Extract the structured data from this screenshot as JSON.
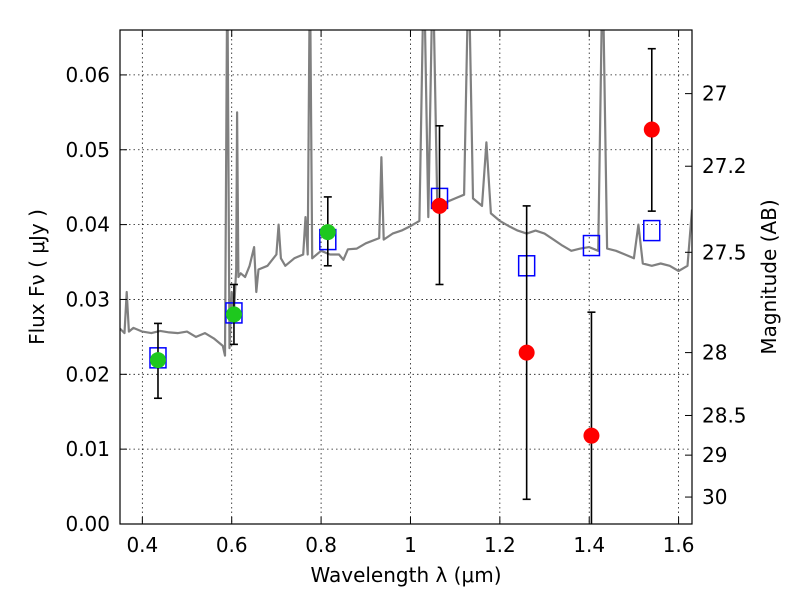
{
  "chart_data": {
    "type": "scatter",
    "xlabel": "Wavelength  λ (μm)",
    "ylabel": "Flux  Fν  ( μJy )",
    "ylabel_right": "Magnitude (AB)",
    "xlim": [
      0.35,
      1.63
    ],
    "ylim": [
      0.0,
      0.066
    ],
    "grid": true,
    "x_ticks": [
      0.4,
      0.6,
      0.8,
      1.0,
      1.2,
      1.4,
      1.6
    ],
    "x_tick_labels": [
      "0.4",
      "0.6",
      "0.8",
      "1",
      "1.2",
      "1.4",
      "1.6"
    ],
    "y_ticks": [
      0.0,
      0.01,
      0.02,
      0.03,
      0.04,
      0.05,
      0.06
    ],
    "y_tick_labels": [
      "0.00",
      "0.01",
      "0.02",
      "0.03",
      "0.04",
      "0.05",
      "0.06"
    ],
    "right_ticks": [
      {
        "label": "27",
        "flux": 0.0575
      },
      {
        "label": "27.2",
        "flux": 0.0478
      },
      {
        "label": "27.5",
        "flux": 0.0363
      },
      {
        "label": "28",
        "flux": 0.0229
      },
      {
        "label": "28.5",
        "flux": 0.0145
      },
      {
        "label": "29",
        "flux": 0.0092
      },
      {
        "label": "30",
        "flux": 0.0036
      }
    ],
    "model_spectrum": {
      "color": "#808080",
      "points": [
        [
          0.35,
          0.0261
        ],
        [
          0.36,
          0.0255
        ],
        [
          0.365,
          0.031
        ],
        [
          0.37,
          0.0257
        ],
        [
          0.38,
          0.0262
        ],
        [
          0.4,
          0.0257
        ],
        [
          0.42,
          0.0255
        ],
        [
          0.44,
          0.0258
        ],
        [
          0.46,
          0.0256
        ],
        [
          0.48,
          0.0255
        ],
        [
          0.5,
          0.0257
        ],
        [
          0.52,
          0.025
        ],
        [
          0.54,
          0.0255
        ],
        [
          0.56,
          0.0248
        ],
        [
          0.58,
          0.0238
        ],
        [
          0.585,
          0.0225
        ],
        [
          0.59,
          0.075
        ],
        [
          0.595,
          0.0235
        ],
        [
          0.6,
          0.031
        ],
        [
          0.605,
          0.0285
        ],
        [
          0.61,
          0.034
        ],
        [
          0.612,
          0.055
        ],
        [
          0.615,
          0.033
        ],
        [
          0.62,
          0.0335
        ],
        [
          0.63,
          0.033
        ],
        [
          0.64,
          0.0345
        ],
        [
          0.65,
          0.037
        ],
        [
          0.655,
          0.031
        ],
        [
          0.66,
          0.034
        ],
        [
          0.68,
          0.0345
        ],
        [
          0.7,
          0.036
        ],
        [
          0.705,
          0.04
        ],
        [
          0.71,
          0.0355
        ],
        [
          0.72,
          0.0345
        ],
        [
          0.74,
          0.0355
        ],
        [
          0.76,
          0.036
        ],
        [
          0.765,
          0.041
        ],
        [
          0.77,
          0.036
        ],
        [
          0.775,
          0.075
        ],
        [
          0.78,
          0.0355
        ],
        [
          0.8,
          0.0365
        ],
        [
          0.82,
          0.036
        ],
        [
          0.84,
          0.036
        ],
        [
          0.85,
          0.0353
        ],
        [
          0.86,
          0.0367
        ],
        [
          0.88,
          0.0368
        ],
        [
          0.9,
          0.0375
        ],
        [
          0.93,
          0.0382
        ],
        [
          0.935,
          0.049
        ],
        [
          0.94,
          0.038
        ],
        [
          0.96,
          0.0388
        ],
        [
          0.98,
          0.0392
        ],
        [
          1.0,
          0.0398
        ],
        [
          1.02,
          0.0405
        ],
        [
          1.03,
          0.075
        ],
        [
          1.04,
          0.041
        ],
        [
          1.05,
          0.075
        ],
        [
          1.06,
          0.0425
        ],
        [
          1.08,
          0.043
        ],
        [
          1.1,
          0.0435
        ],
        [
          1.12,
          0.044
        ],
        [
          1.13,
          0.075
        ],
        [
          1.14,
          0.0435
        ],
        [
          1.16,
          0.0425
        ],
        [
          1.17,
          0.051
        ],
        [
          1.18,
          0.0415
        ],
        [
          1.2,
          0.0405
        ],
        [
          1.22,
          0.0398
        ],
        [
          1.24,
          0.0392
        ],
        [
          1.26,
          0.0388
        ],
        [
          1.28,
          0.0392
        ],
        [
          1.3,
          0.0388
        ],
        [
          1.32,
          0.038
        ],
        [
          1.34,
          0.0372
        ],
        [
          1.36,
          0.0365
        ],
        [
          1.38,
          0.0368
        ],
        [
          1.4,
          0.037
        ],
        [
          1.42,
          0.0365
        ],
        [
          1.43,
          0.075
        ],
        [
          1.44,
          0.0368
        ],
        [
          1.46,
          0.0365
        ],
        [
          1.48,
          0.036
        ],
        [
          1.5,
          0.0355
        ],
        [
          1.51,
          0.04
        ],
        [
          1.52,
          0.0348
        ],
        [
          1.54,
          0.0345
        ],
        [
          1.56,
          0.0348
        ],
        [
          1.58,
          0.0345
        ],
        [
          1.6,
          0.0338
        ],
        [
          1.62,
          0.0345
        ],
        [
          1.63,
          0.042
        ]
      ]
    },
    "series": [
      {
        "marker": "open-square",
        "color": "#0000ff",
        "points": [
          [
            0.435,
            0.0222
          ],
          [
            0.605,
            0.0282
          ],
          [
            0.815,
            0.038
          ],
          [
            1.065,
            0.0435
          ],
          [
            1.26,
            0.0345
          ],
          [
            1.405,
            0.0372
          ],
          [
            1.54,
            0.0392
          ]
        ]
      },
      {
        "marker": "filled-circle",
        "color": "#1ec81e",
        "points": [
          {
            "x": 0.435,
            "y": 0.0219,
            "yerr_low": 0.0168,
            "yerr_high": 0.0268
          },
          {
            "x": 0.605,
            "y": 0.028,
            "yerr_low": 0.024,
            "yerr_high": 0.032
          },
          {
            "x": 0.815,
            "y": 0.039,
            "yerr_low": 0.0345,
            "yerr_high": 0.0437
          }
        ]
      },
      {
        "marker": "filled-circle",
        "color": "#ff0000",
        "points": [
          {
            "x": 1.065,
            "y": 0.0425,
            "yerr_low": 0.032,
            "yerr_high": 0.0532
          },
          {
            "x": 1.26,
            "y": 0.0229,
            "yerr_low": 0.0033,
            "yerr_high": 0.0425
          },
          {
            "x": 1.405,
            "y": 0.0118,
            "yerr_low": -0.001,
            "yerr_high": 0.0283
          },
          {
            "x": 1.54,
            "y": 0.0527,
            "yerr_low": 0.0418,
            "yerr_high": 0.0635
          }
        ]
      }
    ]
  }
}
